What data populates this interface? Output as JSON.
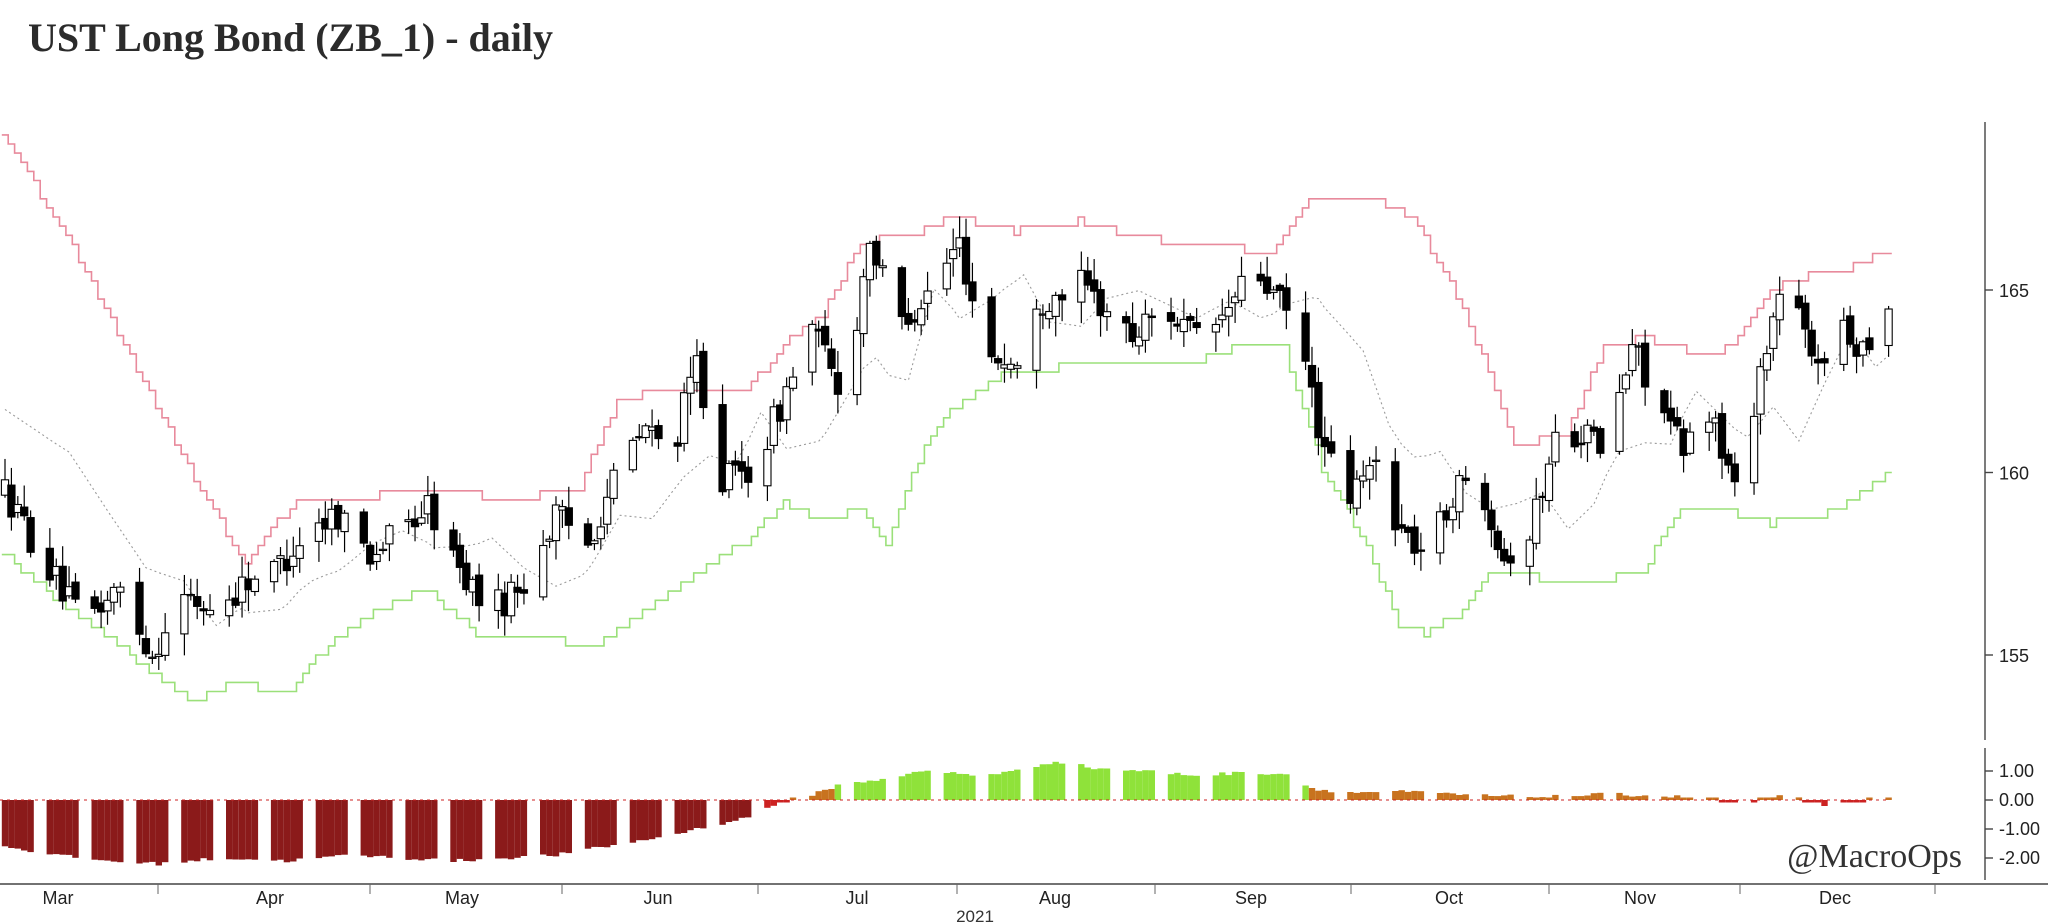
{
  "chart_data": {
    "type": "candlestick",
    "title": "UST Long Bond (ZB_1) - daily",
    "year_label": "2021",
    "x_tick_labels": [
      "Mar",
      "Apr",
      "May",
      "Jun",
      "Jul",
      "Aug",
      "Sep",
      "Oct",
      "Nov",
      "Dec"
    ],
    "y_axis": {
      "ticks": [
        155,
        160,
        165
      ],
      "ylim": [
        152.5,
        169.5
      ],
      "side": "right"
    },
    "oscillator_axis": {
      "ticks": [
        "1.00",
        "0.00",
        "-1.00",
        "-2.00"
      ],
      "ylim": [
        -2.6,
        1.6
      ],
      "side": "right"
    },
    "series_colors": {
      "up_body": "#ffffff",
      "down_body": "#000000",
      "upper_band": "#e88a9c",
      "lower_band": "#9be07a",
      "mid_line": "#9a9a9a",
      "osc_deep_negative": "#8b1a1a",
      "osc_negative": "#cc2222",
      "osc_positive_weak": "#c8731f",
      "osc_positive_strong": "#8fe23a"
    },
    "price_path": [
      {
        "t": 0,
        "c": 159.5
      },
      {
        "t": 6,
        "c": 157.6
      },
      {
        "t": 12,
        "c": 155.9
      },
      {
        "t": 18,
        "c": 156.8
      },
      {
        "t": 23,
        "c": 155.0
      },
      {
        "t": 27,
        "c": 156.6
      },
      {
        "t": 33,
        "c": 156.2
      },
      {
        "t": 38,
        "c": 157.1
      },
      {
        "t": 42,
        "c": 157.3
      },
      {
        "t": 47,
        "c": 158.4
      },
      {
        "t": 52,
        "c": 158.9
      },
      {
        "t": 57,
        "c": 157.8
      },
      {
        "t": 62,
        "c": 158.4
      },
      {
        "t": 66,
        "c": 159.1
      },
      {
        "t": 71,
        "c": 157.3
      },
      {
        "t": 76,
        "c": 156.2
      },
      {
        "t": 81,
        "c": 157.0
      },
      {
        "t": 86,
        "c": 158.8
      },
      {
        "t": 91,
        "c": 158.1
      },
      {
        "t": 96,
        "c": 160.2
      },
      {
        "t": 100,
        "c": 161.2
      },
      {
        "t": 104,
        "c": 160.5
      },
      {
        "t": 108,
        "c": 163.0
      },
      {
        "t": 112,
        "c": 159.8
      },
      {
        "t": 117,
        "c": 160.1
      },
      {
        "t": 121,
        "c": 161.8
      },
      {
        "t": 126,
        "c": 164.0
      },
      {
        "t": 131,
        "c": 161.9
      },
      {
        "t": 135,
        "c": 166.5
      },
      {
        "t": 139,
        "c": 164.0
      },
      {
        "t": 144,
        "c": 164.9
      },
      {
        "t": 149,
        "c": 166.3
      },
      {
        "t": 153,
        "c": 163.3
      },
      {
        "t": 158,
        "c": 162.9
      },
      {
        "t": 162,
        "c": 164.7
      },
      {
        "t": 167,
        "c": 165.3
      },
      {
        "t": 171,
        "c": 164.6
      },
      {
        "t": 176,
        "c": 163.7
      },
      {
        "t": 181,
        "c": 164.6
      },
      {
        "t": 186,
        "c": 163.6
      },
      {
        "t": 190,
        "c": 164.2
      },
      {
        "t": 195,
        "c": 165.6
      },
      {
        "t": 199,
        "c": 164.6
      },
      {
        "t": 202,
        "c": 163.8
      },
      {
        "t": 206,
        "c": 160.5
      },
      {
        "t": 210,
        "c": 159.3
      },
      {
        "t": 214,
        "c": 160.3
      },
      {
        "t": 218,
        "c": 158.4
      },
      {
        "t": 222,
        "c": 157.7
      },
      {
        "t": 226,
        "c": 159.4
      },
      {
        "t": 230,
        "c": 160.0
      },
      {
        "t": 234,
        "c": 157.7
      },
      {
        "t": 238,
        "c": 158.3
      },
      {
        "t": 242,
        "c": 160.9
      },
      {
        "t": 246,
        "c": 161.2
      },
      {
        "t": 250,
        "c": 160.5
      },
      {
        "t": 254,
        "c": 163.5
      },
      {
        "t": 258,
        "c": 162.0
      },
      {
        "t": 262,
        "c": 160.5
      },
      {
        "t": 266,
        "c": 161.8
      },
      {
        "t": 270,
        "c": 159.5
      },
      {
        "t": 274,
        "c": 162.8
      },
      {
        "t": 278,
        "c": 165.6
      },
      {
        "t": 282,
        "c": 163.0
      },
      {
        "t": 286,
        "c": 163.8
      },
      {
        "t": 290,
        "c": 163.5
      },
      {
        "t": 294,
        "c": 164.6
      }
    ],
    "upper_band": [
      {
        "t": 0,
        "v": 169.3
      },
      {
        "t": 10,
        "v": 166.5
      },
      {
        "t": 20,
        "v": 163.2
      },
      {
        "t": 30,
        "v": 159.8
      },
      {
        "t": 38,
        "v": 157.5
      },
      {
        "t": 46,
        "v": 159.3
      },
      {
        "t": 54,
        "v": 159.2
      },
      {
        "t": 62,
        "v": 159.5
      },
      {
        "t": 72,
        "v": 159.4
      },
      {
        "t": 82,
        "v": 159.3
      },
      {
        "t": 90,
        "v": 159.6
      },
      {
        "t": 96,
        "v": 162.0
      },
      {
        "t": 104,
        "v": 162.3
      },
      {
        "t": 110,
        "v": 162.3
      },
      {
        "t": 116,
        "v": 162.2
      },
      {
        "t": 122,
        "v": 163.5
      },
      {
        "t": 128,
        "v": 164.3
      },
      {
        "t": 134,
        "v": 166.3
      },
      {
        "t": 142,
        "v": 166.5
      },
      {
        "t": 148,
        "v": 167.0
      },
      {
        "t": 158,
        "v": 166.6
      },
      {
        "t": 168,
        "v": 166.9
      },
      {
        "t": 178,
        "v": 166.4
      },
      {
        "t": 188,
        "v": 166.3
      },
      {
        "t": 198,
        "v": 166.0
      },
      {
        "t": 204,
        "v": 167.5
      },
      {
        "t": 212,
        "v": 167.6
      },
      {
        "t": 220,
        "v": 167.0
      },
      {
        "t": 226,
        "v": 165.2
      },
      {
        "t": 232,
        "v": 162.8
      },
      {
        "t": 236,
        "v": 160.7
      },
      {
        "t": 244,
        "v": 161.1
      },
      {
        "t": 250,
        "v": 163.4
      },
      {
        "t": 256,
        "v": 163.7
      },
      {
        "t": 264,
        "v": 163.3
      },
      {
        "t": 270,
        "v": 163.4
      },
      {
        "t": 276,
        "v": 165.0
      },
      {
        "t": 282,
        "v": 165.4
      },
      {
        "t": 288,
        "v": 165.6
      },
      {
        "t": 294,
        "v": 166.1
      }
    ],
    "lower_band": [
      {
        "t": 0,
        "v": 157.8
      },
      {
        "t": 8,
        "v": 156.6
      },
      {
        "t": 16,
        "v": 155.6
      },
      {
        "t": 24,
        "v": 154.4
      },
      {
        "t": 30,
        "v": 153.7
      },
      {
        "t": 36,
        "v": 154.3
      },
      {
        "t": 44,
        "v": 153.9
      },
      {
        "t": 50,
        "v": 155.1
      },
      {
        "t": 58,
        "v": 156.2
      },
      {
        "t": 66,
        "v": 156.8
      },
      {
        "t": 74,
        "v": 155.6
      },
      {
        "t": 82,
        "v": 155.6
      },
      {
        "t": 92,
        "v": 155.2
      },
      {
        "t": 100,
        "v": 156.2
      },
      {
        "t": 108,
        "v": 157.2
      },
      {
        "t": 116,
        "v": 158.1
      },
      {
        "t": 122,
        "v": 159.2
      },
      {
        "t": 128,
        "v": 158.7
      },
      {
        "t": 134,
        "v": 159.0
      },
      {
        "t": 138,
        "v": 158.1
      },
      {
        "t": 142,
        "v": 160.1
      },
      {
        "t": 148,
        "v": 161.7
      },
      {
        "t": 156,
        "v": 162.7
      },
      {
        "t": 166,
        "v": 162.9
      },
      {
        "t": 176,
        "v": 163.0
      },
      {
        "t": 186,
        "v": 163.0
      },
      {
        "t": 194,
        "v": 163.5
      },
      {
        "t": 200,
        "v": 163.4
      },
      {
        "t": 206,
        "v": 160.1
      },
      {
        "t": 212,
        "v": 158.3
      },
      {
        "t": 218,
        "v": 155.8
      },
      {
        "t": 222,
        "v": 155.6
      },
      {
        "t": 228,
        "v": 156.2
      },
      {
        "t": 232,
        "v": 157.3
      },
      {
        "t": 240,
        "v": 157.1
      },
      {
        "t": 248,
        "v": 157.0
      },
      {
        "t": 256,
        "v": 157.3
      },
      {
        "t": 262,
        "v": 159.1
      },
      {
        "t": 270,
        "v": 158.9
      },
      {
        "t": 276,
        "v": 158.6
      },
      {
        "t": 284,
        "v": 158.8
      },
      {
        "t": 290,
        "v": 159.4
      },
      {
        "t": 294,
        "v": 160.0
      }
    ],
    "oscillator_path": [
      {
        "t": 0,
        "v": -1.6
      },
      {
        "t": 8,
        "v": -1.9
      },
      {
        "t": 16,
        "v": -2.1
      },
      {
        "t": 24,
        "v": -2.2
      },
      {
        "t": 34,
        "v": -2.0
      },
      {
        "t": 44,
        "v": -2.1
      },
      {
        "t": 54,
        "v": -1.9
      },
      {
        "t": 62,
        "v": -2.0
      },
      {
        "t": 70,
        "v": -2.1
      },
      {
        "t": 78,
        "v": -2.0
      },
      {
        "t": 86,
        "v": -1.9
      },
      {
        "t": 94,
        "v": -1.6
      },
      {
        "t": 102,
        "v": -1.3
      },
      {
        "t": 110,
        "v": -0.9
      },
      {
        "t": 116,
        "v": -0.6
      },
      {
        "t": 120,
        "v": -0.15
      },
      {
        "t": 126,
        "v": 0.2
      },
      {
        "t": 130,
        "v": 0.5
      },
      {
        "t": 136,
        "v": 0.7
      },
      {
        "t": 144,
        "v": 1.0
      },
      {
        "t": 152,
        "v": 0.85
      },
      {
        "t": 158,
        "v": 1.0
      },
      {
        "t": 164,
        "v": 1.35
      },
      {
        "t": 170,
        "v": 1.1
      },
      {
        "t": 178,
        "v": 1.0
      },
      {
        "t": 186,
        "v": 0.85
      },
      {
        "t": 194,
        "v": 0.95
      },
      {
        "t": 200,
        "v": 0.9
      },
      {
        "t": 204,
        "v": 0.4
      },
      {
        "t": 210,
        "v": 0.25
      },
      {
        "t": 216,
        "v": 0.3
      },
      {
        "t": 222,
        "v": 0.25
      },
      {
        "t": 230,
        "v": 0.15
      },
      {
        "t": 240,
        "v": 0.1
      },
      {
        "t": 250,
        "v": 0.2
      },
      {
        "t": 258,
        "v": 0.15
      },
      {
        "t": 266,
        "v": 0.05
      },
      {
        "t": 272,
        "v": -0.1
      },
      {
        "t": 278,
        "v": 0.15
      },
      {
        "t": 284,
        "v": -0.15
      },
      {
        "t": 290,
        "v": -0.05
      },
      {
        "t": 294,
        "v": 0.05
      }
    ]
  },
  "watermark": "@MacroOps"
}
